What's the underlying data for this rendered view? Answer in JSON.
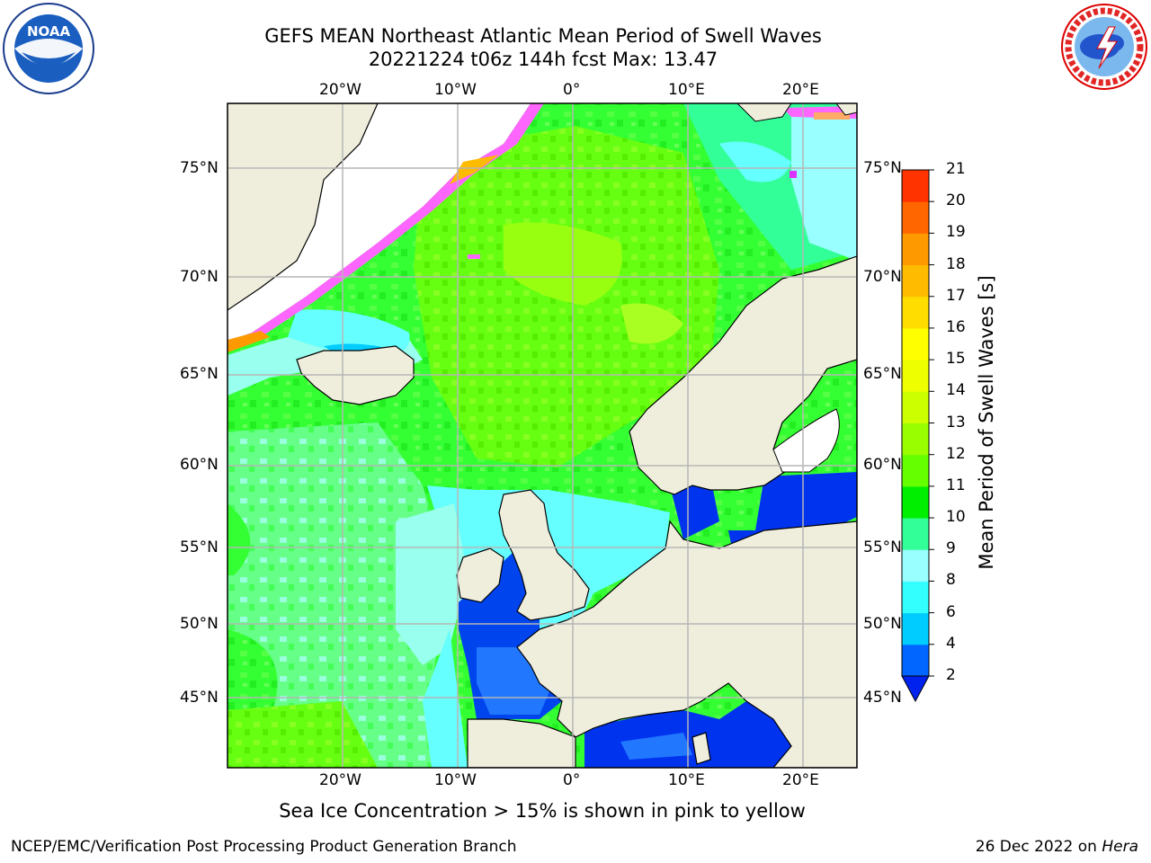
{
  "title_line1": "GEFS MEAN Northeast Atlantic Mean Period of Swell Waves",
  "title_line2": "20221224 t06z 144h fcst   Max: 13.47",
  "lon_labels": [
    "20°W",
    "10°W",
    "0°",
    "10°E",
    "20°E"
  ],
  "lat_labels": [
    "75°N",
    "70°N",
    "65°N",
    "60°N",
    "55°N",
    "50°N",
    "45°N"
  ],
  "colorbar": {
    "label": "Mean Period of Swell Waves [s]",
    "ticks": [
      "2",
      "4",
      "6",
      "8",
      "9",
      "10",
      "11",
      "12",
      "13",
      "14",
      "15",
      "16",
      "17",
      "18",
      "19",
      "20",
      "21"
    ],
    "colors": [
      "#0066ff",
      "#00ccff",
      "#33ffff",
      "#99ffff",
      "#33ff99",
      "#00ee00",
      "#66ff00",
      "#99ff00",
      "#ccff00",
      "#eeff00",
      "#ffff00",
      "#ffdd00",
      "#ffbb00",
      "#ff9900",
      "#ff6600",
      "#ff3300",
      "#ff0000"
    ],
    "under_color": "#0022ee"
  },
  "colors": {
    "land": "#efeedd",
    "ocean_green": "#33ff33",
    "ocean_lightgreen": "#88ff22",
    "ocean_cyan": "#66ffff",
    "ocean_blue": "#0044ee",
    "ice_pink": "#ff66ff"
  },
  "ice_note": "Sea Ice Concentration > 15% is shown in pink to yellow",
  "footer_left": "NCEP/EMC/Verification Post Processing Product Generation Branch",
  "footer_right_date": "26 Dec 2022 on ",
  "footer_right_host": "Hera",
  "logo_left": "noaa-logo",
  "logo_right": "nws-logo",
  "noaa_text": "NOAA"
}
